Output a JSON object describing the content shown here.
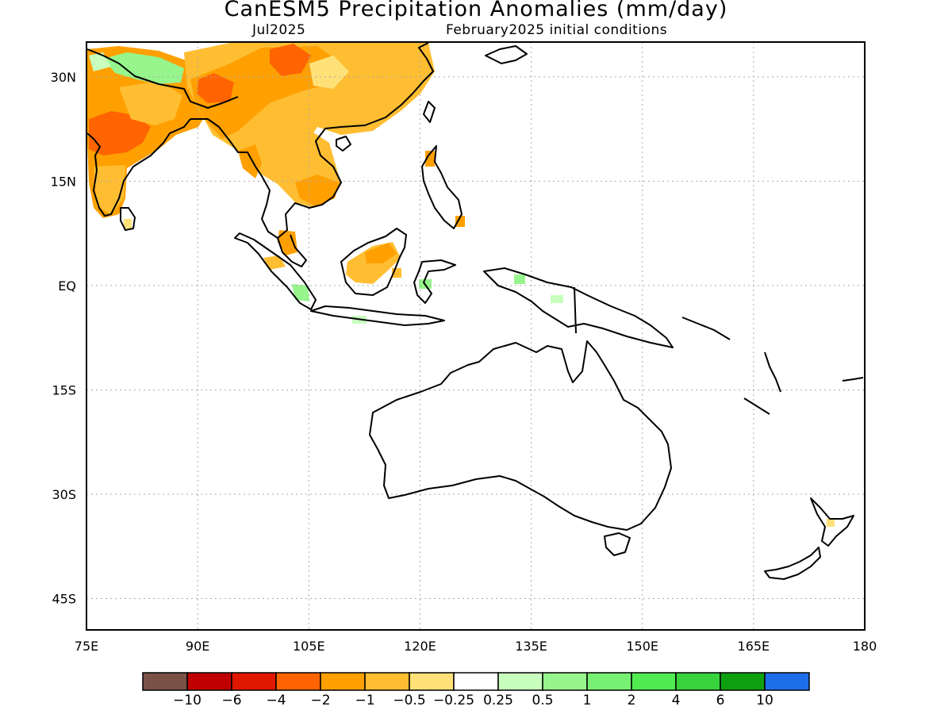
{
  "title": "CanESM5 Precipitation Anomalies (mm/day)",
  "subtitle_left": "Jul2025",
  "subtitle_right": "February2025 initial conditions",
  "map": {
    "lon_range": [
      75,
      180
    ],
    "lat_range": [
      -49.5,
      35
    ],
    "lon_ticks": [
      {
        "value": 75,
        "label": "75E"
      },
      {
        "value": 90,
        "label": "90E"
      },
      {
        "value": 105,
        "label": "105E"
      },
      {
        "value": 120,
        "label": "120E"
      },
      {
        "value": 135,
        "label": "135E"
      },
      {
        "value": 150,
        "label": "150E"
      },
      {
        "value": 165,
        "label": "165E"
      },
      {
        "value": 180,
        "label": "180"
      }
    ],
    "lat_ticks": [
      {
        "value": 30,
        "label": "30N"
      },
      {
        "value": 15,
        "label": "15N"
      },
      {
        "value": 0,
        "label": "EQ"
      },
      {
        "value": -15,
        "label": "15S"
      },
      {
        "value": -30,
        "label": "30S"
      },
      {
        "value": -45,
        "label": "45S"
      }
    ],
    "gridlines": "dotted"
  },
  "colorbar": {
    "colors": [
      "#7a5248",
      "#c00000",
      "#e01800",
      "#ff6400",
      "#ffa000",
      "#ffbe32",
      "#ffe178",
      "#ffffff",
      "#c8ffbe",
      "#96f58c",
      "#78f073",
      "#50eb50",
      "#37d23c",
      "#0fa00f",
      "#1e6eeb"
    ],
    "labels": [
      "-10",
      "-6",
      "-4",
      "-2",
      "-1",
      "-0.5",
      "-0.25",
      "0.25",
      "0.5",
      "1",
      "2",
      "4",
      "6",
      "10"
    ]
  }
}
